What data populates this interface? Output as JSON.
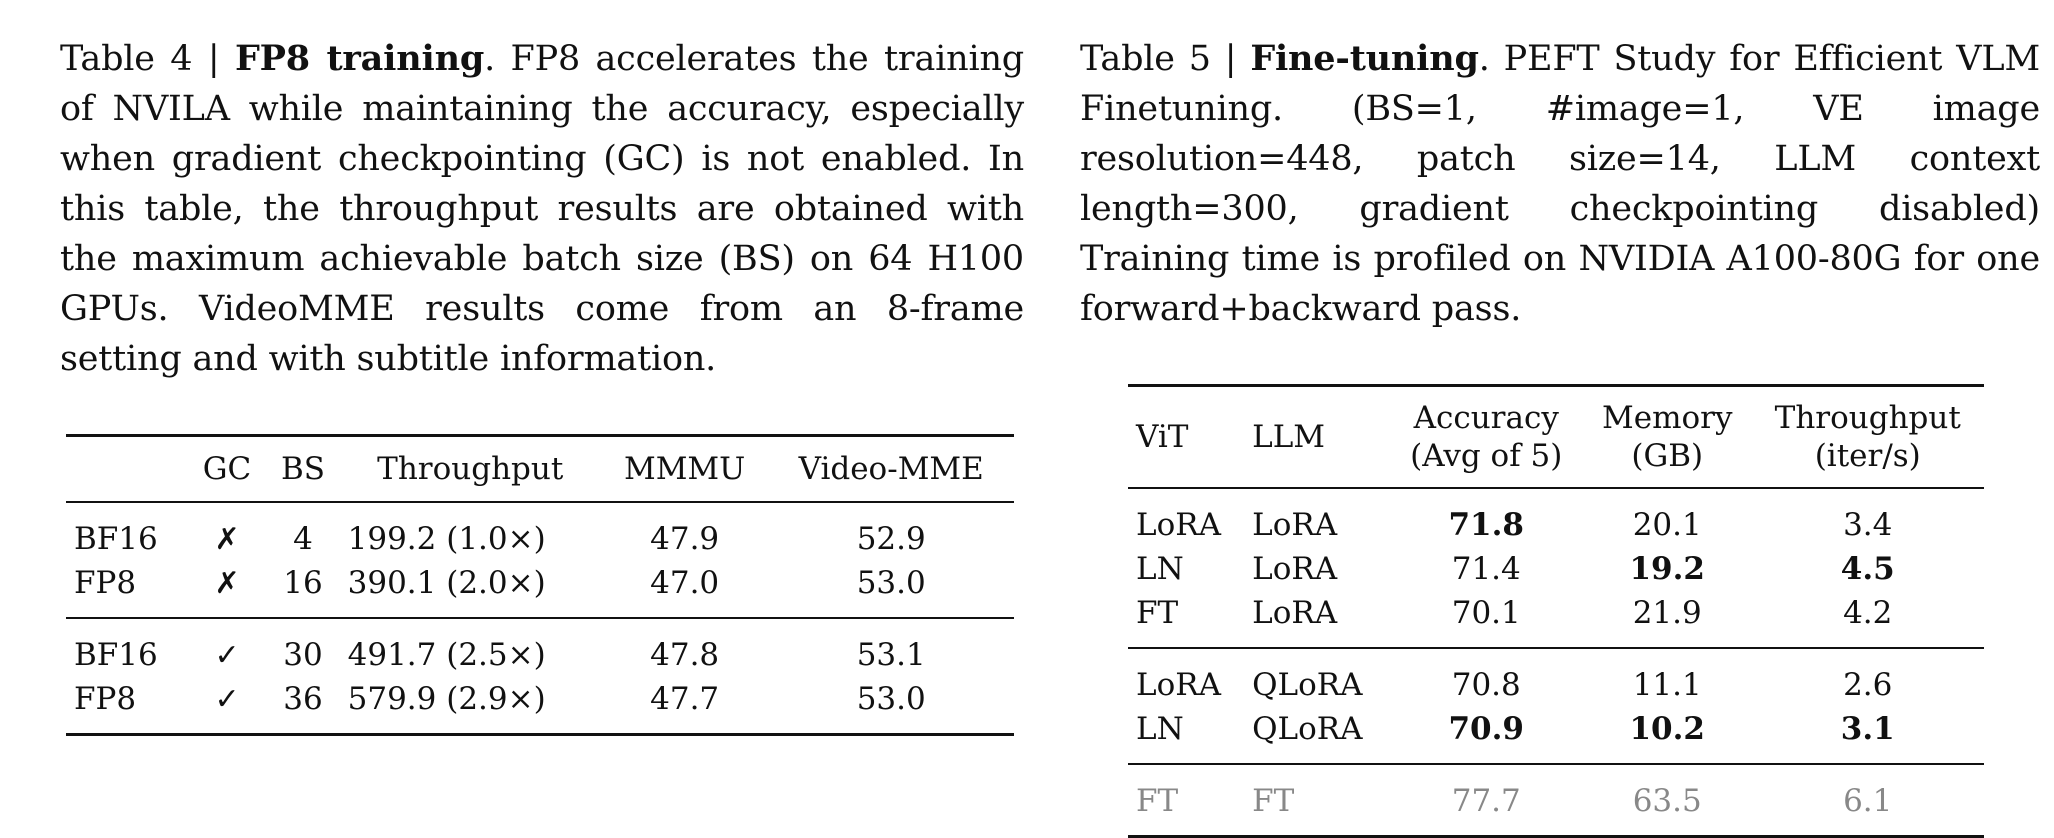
{
  "table4": {
    "caption_label": "Table 4 | ",
    "caption_title": "FP8 training",
    "caption_text": ". FP8 accelerates the training of NVILA while maintaining the accuracy, especially when gradient checkpointing (GC) is not enabled. In this table, the throughput results are obtained with the maximum achievable batch size (BS) on 64 H100 GPUs.  VideoMME results come from an 8-frame setting and with subtitle information.",
    "headers": [
      "",
      "GC",
      "BS",
      "Throughput",
      "MMMU",
      "Video-MME"
    ],
    "rows": [
      [
        "BF16",
        "✗",
        "4",
        "199.2 (1.0×)",
        "47.9",
        "52.9"
      ],
      [
        "FP8",
        "✗",
        "16",
        "390.1 (2.0×)",
        "47.0",
        "53.0"
      ],
      [
        "BF16",
        "✓",
        "30",
        "491.7 (2.5×)",
        "47.8",
        "53.1"
      ],
      [
        "FP8",
        "✓",
        "36",
        "579.9 (2.9×)",
        "47.7",
        "53.0"
      ]
    ]
  },
  "table5": {
    "caption_label": "Table 5 | ",
    "caption_title": "Fine-tuning",
    "caption_text": ".  PEFT Study for Efficient VLM Finetuning. (BS=1, #image=1, VE image resolution=448, patch size=14, LLM context length=300, gradient checkpointing disabled) Training time is profiled on NVIDIA A100-80G for one forward+backward pass.",
    "headers": [
      "ViT",
      "LLM",
      "Accuracy (Avg of 5)",
      "Memory (GB)",
      "Throughput (iter/s)"
    ],
    "header_lines": {
      "accuracy": [
        "Accuracy",
        "(Avg of 5)"
      ],
      "memory": [
        "Memory",
        "(GB)"
      ],
      "throughput": [
        "Throughput",
        "(iter/s)"
      ]
    },
    "rows": [
      [
        "LoRA",
        "LoRA",
        "71.8",
        "20.1",
        "3.4"
      ],
      [
        "LN",
        "LoRA",
        "71.4",
        "19.2",
        "4.5"
      ],
      [
        "FT",
        "LoRA",
        "70.1",
        "21.9",
        "4.2"
      ],
      [
        "LoRA",
        "QLoRA",
        "70.8",
        "11.1",
        "2.6"
      ],
      [
        "LN",
        "QLoRA",
        "70.9",
        "10.2",
        "3.1"
      ],
      [
        "FT",
        "FT",
        "77.7",
        "63.5",
        "6.1"
      ]
    ]
  }
}
